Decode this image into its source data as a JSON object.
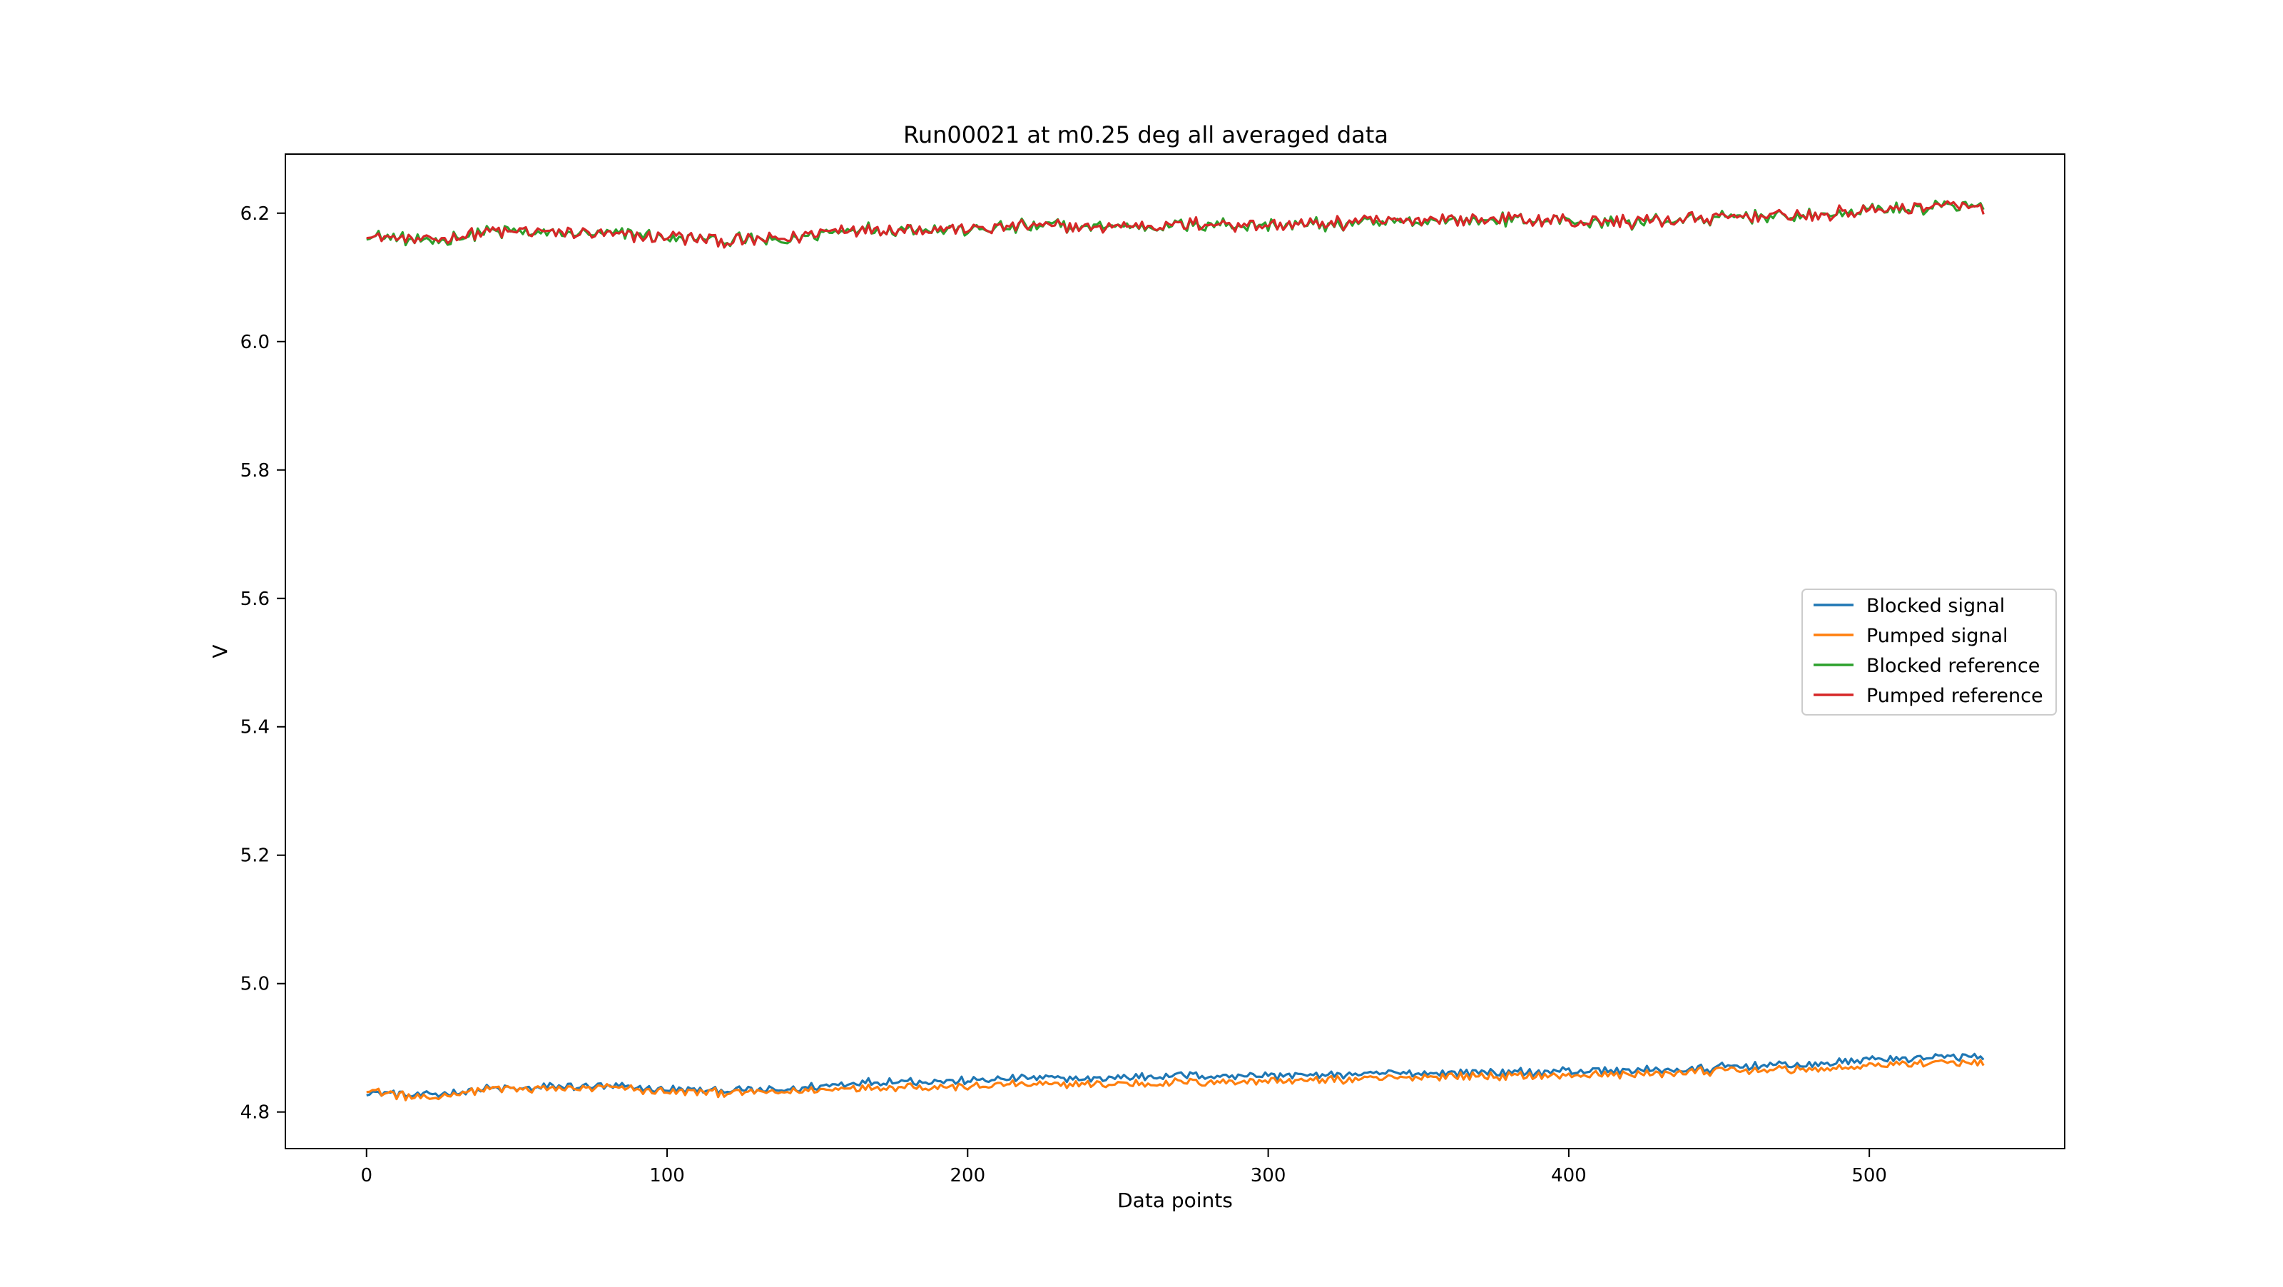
{
  "chart_data": {
    "type": "line",
    "title": "Run00021 at m0.25 deg all averaged data",
    "xlabel": "Data points",
    "ylabel": "V",
    "xlim": [
      -27,
      565
    ],
    "ylim": [
      4.743,
      6.292
    ],
    "xticks": [
      0,
      100,
      200,
      300,
      400,
      500
    ],
    "xtick_labels": [
      "0",
      "100",
      "200",
      "300",
      "400",
      "500"
    ],
    "yticks": [
      4.8,
      5.0,
      5.2,
      5.4,
      5.6,
      5.8,
      6.0,
      6.2
    ],
    "ytick_labels": [
      "4.8",
      "5.0",
      "5.2",
      "5.4",
      "5.6",
      "5.8",
      "6.0",
      "6.2"
    ],
    "grid": false,
    "legend_position": "center-right",
    "n_points": 539,
    "series": [
      {
        "name": "Blocked signal",
        "color": "#1f77b4",
        "x": [
          0,
          20,
          40,
          60,
          80,
          100,
          120,
          140,
          160,
          180,
          200,
          220,
          240,
          260,
          280,
          300,
          320,
          340,
          360,
          380,
          400,
          420,
          440,
          460,
          480,
          500,
          520,
          538
        ],
        "values": [
          4.83,
          4.825,
          4.835,
          4.838,
          4.84,
          4.835,
          4.833,
          4.835,
          4.845,
          4.848,
          4.848,
          4.853,
          4.852,
          4.856,
          4.857,
          4.857,
          4.858,
          4.859,
          4.862,
          4.862,
          4.864,
          4.864,
          4.866,
          4.872,
          4.874,
          4.882,
          4.884,
          4.886
        ]
      },
      {
        "name": "Pumped signal",
        "color": "#ff7f0e",
        "x": [
          0,
          20,
          40,
          60,
          80,
          100,
          120,
          140,
          160,
          180,
          200,
          220,
          240,
          260,
          280,
          300,
          320,
          340,
          360,
          380,
          400,
          420,
          440,
          460,
          480,
          500,
          520,
          538
        ],
        "values": [
          4.835,
          4.82,
          4.836,
          4.836,
          4.838,
          4.832,
          4.83,
          4.83,
          4.838,
          4.84,
          4.84,
          4.843,
          4.843,
          4.845,
          4.847,
          4.848,
          4.85,
          4.852,
          4.856,
          4.856,
          4.857,
          4.859,
          4.862,
          4.866,
          4.866,
          4.872,
          4.876,
          4.876
        ]
      },
      {
        "name": "Blocked reference",
        "color": "#2ca02c",
        "x": [
          0,
          20,
          40,
          60,
          80,
          100,
          120,
          140,
          160,
          180,
          200,
          220,
          240,
          260,
          280,
          300,
          320,
          340,
          360,
          380,
          400,
          420,
          440,
          460,
          480,
          500,
          520,
          538
        ],
        "values": [
          6.165,
          6.155,
          6.17,
          6.17,
          6.168,
          6.163,
          6.158,
          6.158,
          6.175,
          6.175,
          6.175,
          6.18,
          6.178,
          6.18,
          6.183,
          6.18,
          6.183,
          6.186,
          6.189,
          6.19,
          6.188,
          6.186,
          6.19,
          6.195,
          6.196,
          6.203,
          6.21,
          6.21
        ]
      },
      {
        "name": "Pumped reference",
        "color": "#d62728",
        "x": [
          0,
          20,
          40,
          60,
          80,
          100,
          120,
          140,
          160,
          180,
          200,
          220,
          240,
          260,
          280,
          300,
          320,
          340,
          360,
          380,
          400,
          420,
          440,
          460,
          480,
          500,
          520,
          538
        ],
        "values": [
          6.167,
          6.157,
          6.172,
          6.17,
          6.168,
          6.163,
          6.158,
          6.16,
          6.176,
          6.175,
          6.176,
          6.181,
          6.178,
          6.181,
          6.184,
          6.181,
          6.184,
          6.187,
          6.19,
          6.19,
          6.188,
          6.186,
          6.191,
          6.196,
          6.196,
          6.204,
          6.21,
          6.21
        ]
      }
    ]
  }
}
